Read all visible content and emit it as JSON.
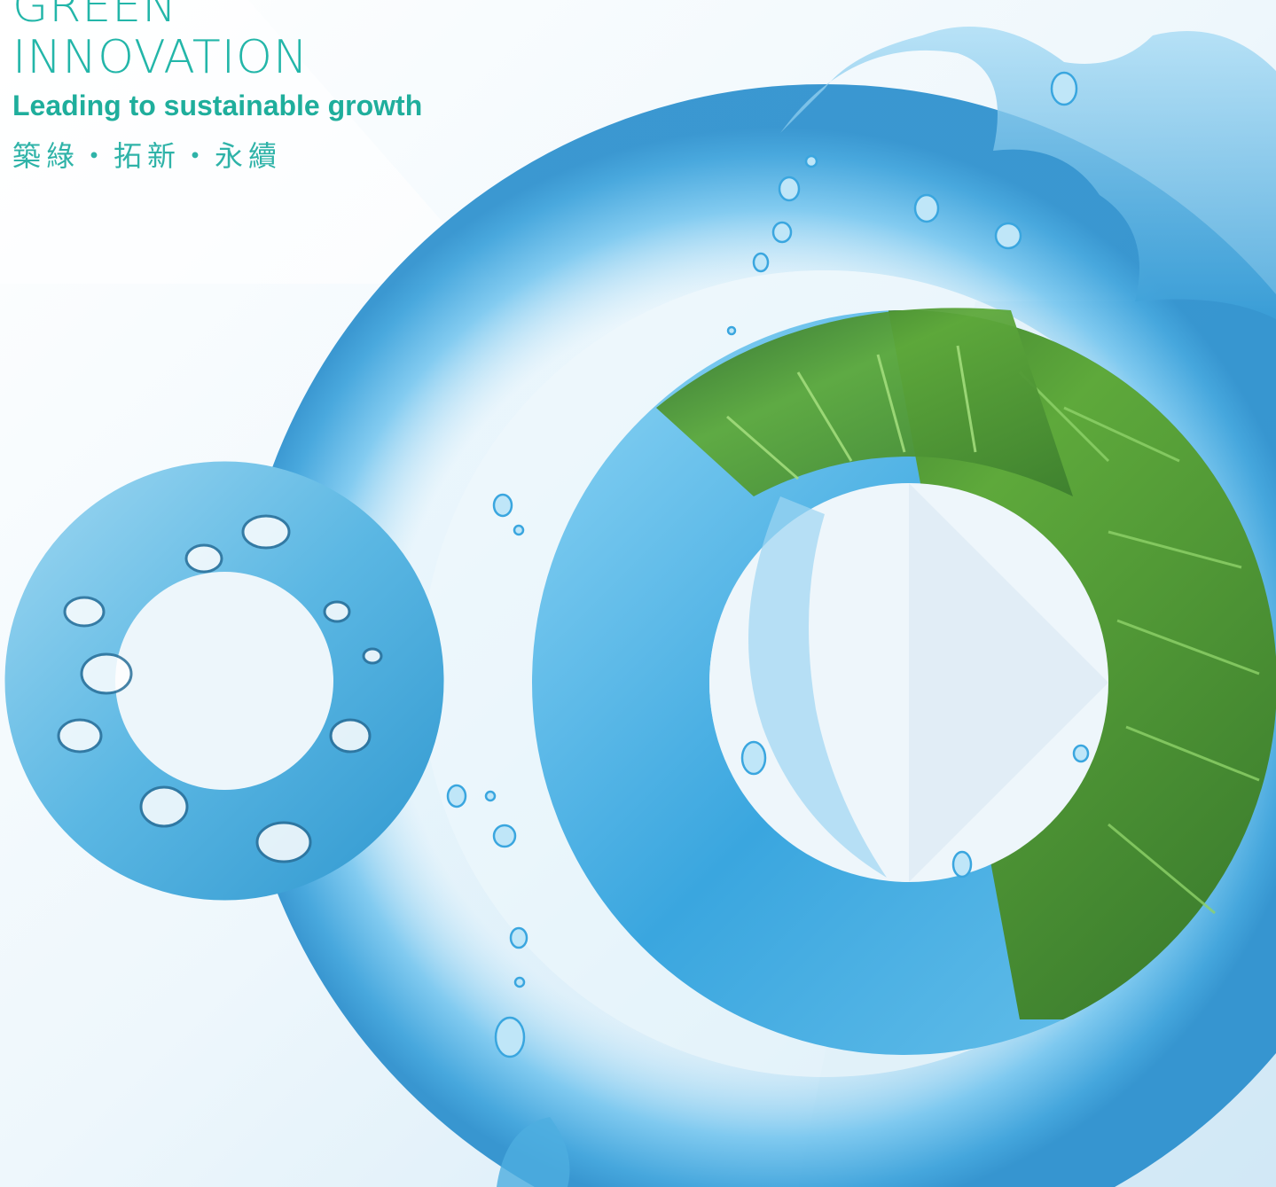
{
  "heading": {
    "line1": "GREEN",
    "line2": "INNOVATION",
    "tagline": "Leading to sustainable growth",
    "chinese": "築綠・拓新・永續"
  },
  "palette": {
    "accent_teal": "#23b6a9",
    "water_blue": "#3aa6df",
    "deep_blue": "#1b7fc4",
    "leaf_green": "#5ea93b",
    "background": "#e9f5fc"
  },
  "artwork": {
    "elements": [
      "small-bubble-ring",
      "large-water-ring",
      "water-texture-ring",
      "leaf-texture-ring",
      "water-splash",
      "water-droplets"
    ]
  }
}
